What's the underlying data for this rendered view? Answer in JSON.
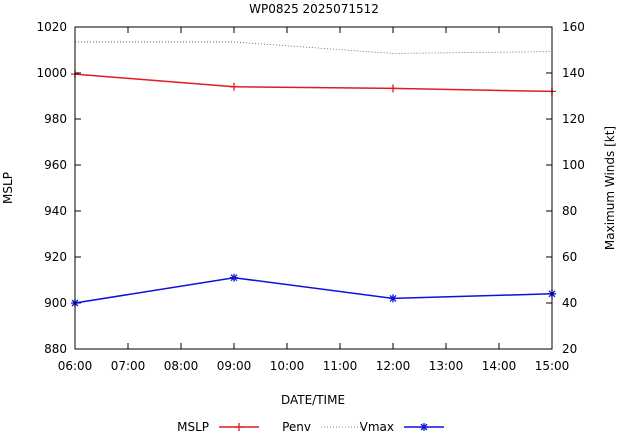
{
  "chart_data": {
    "type": "line",
    "title": "WP0825 2025071512",
    "xlabel": "DATE/TIME",
    "ylabel": "MSLP",
    "y2label": "Maximum Winds [kt]",
    "x_ticks": [
      "06:00",
      "07:00",
      "08:00",
      "09:00",
      "10:00",
      "11:00",
      "12:00",
      "13:00",
      "14:00",
      "15:00"
    ],
    "xlim": [
      "06:00",
      "15:00"
    ],
    "ylim": [
      880,
      1020
    ],
    "y_ticks": [
      880,
      900,
      920,
      940,
      960,
      980,
      1000,
      1020
    ],
    "y2lim": [
      20,
      160
    ],
    "y2_ticks": [
      20,
      40,
      60,
      80,
      100,
      120,
      140,
      160
    ],
    "grid": false,
    "legend_position": "bottom",
    "series": [
      {
        "name": "MSLP",
        "axis": "left",
        "color": "#e41a1c",
        "style": "solid-plus",
        "x": [
          "06:00",
          "09:00",
          "12:00",
          "15:00"
        ],
        "values": [
          999.5,
          994,
          993.3,
          992
        ]
      },
      {
        "name": "Penv",
        "axis": "left",
        "color": "#555555",
        "style": "dotted",
        "x": [
          "06:00",
          "09:00",
          "12:00",
          "15:00"
        ],
        "values": [
          1013.5,
          1013.5,
          1008.5,
          1009.3
        ]
      },
      {
        "name": "Vmax",
        "axis": "right",
        "color": "#1010dd",
        "style": "solid-star",
        "x": [
          "06:00",
          "09:00",
          "12:00",
          "15:00"
        ],
        "values": [
          40,
          51,
          42,
          44
        ]
      }
    ]
  }
}
